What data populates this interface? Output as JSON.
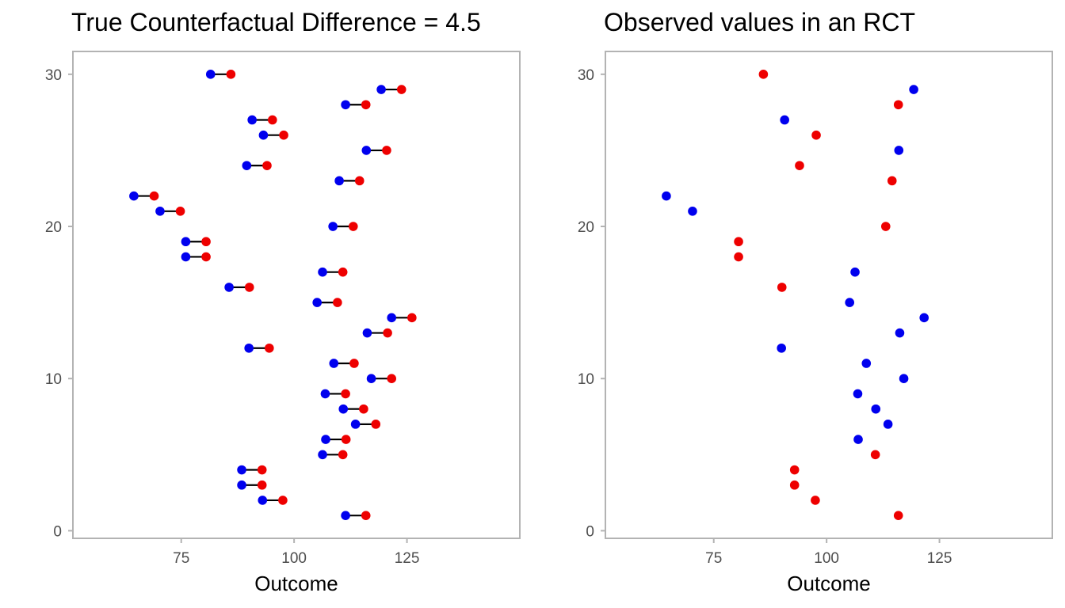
{
  "chart_data": [
    {
      "type": "scatter",
      "title": "True Counterfactual Difference = 4.5",
      "xlabel": "Outcome",
      "ylabel": "",
      "xlim": [
        51,
        150
      ],
      "ylim": [
        -0.5,
        31.5
      ],
      "x_ticks": [
        75,
        100,
        125
      ],
      "x_tick_labels": [
        "75",
        "100",
        "125"
      ],
      "y_ticks": [
        0,
        10,
        20,
        30
      ],
      "y_tick_labels": [
        "0",
        "10",
        "20",
        "30"
      ],
      "grid": false,
      "colors": {
        "control": "#0000ee",
        "treated": "#ee0000",
        "segment": "#000000"
      },
      "segments": true,
      "points": [
        {
          "y": 1,
          "blue": 111.4,
          "red": 115.9
        },
        {
          "y": 2,
          "blue": 93.0,
          "red": 97.5
        },
        {
          "y": 3,
          "blue": 88.4,
          "red": 92.9
        },
        {
          "y": 4,
          "blue": 88.4,
          "red": 92.9
        },
        {
          "y": 5,
          "blue": 106.3,
          "red": 110.8
        },
        {
          "y": 6,
          "blue": 107.0,
          "red": 111.5
        },
        {
          "y": 7,
          "blue": 113.6,
          "red": 118.1
        },
        {
          "y": 8,
          "blue": 110.9,
          "red": 115.4
        },
        {
          "y": 9,
          "blue": 106.9,
          "red": 111.4
        },
        {
          "y": 10,
          "blue": 117.1,
          "red": 121.6
        },
        {
          "y": 11,
          "blue": 108.8,
          "red": 113.3
        },
        {
          "y": 12,
          "blue": 90.0,
          "red": 94.5
        },
        {
          "y": 13,
          "blue": 116.2,
          "red": 120.7
        },
        {
          "y": 14,
          "blue": 121.6,
          "red": 126.1
        },
        {
          "y": 15,
          "blue": 105.1,
          "red": 109.6
        },
        {
          "y": 16,
          "blue": 85.6,
          "red": 90.1
        },
        {
          "y": 17,
          "blue": 106.3,
          "red": 110.8
        },
        {
          "y": 18,
          "blue": 76.0,
          "red": 80.5
        },
        {
          "y": 19,
          "blue": 76.0,
          "red": 80.5
        },
        {
          "y": 20,
          "blue": 108.6,
          "red": 113.1
        },
        {
          "y": 21,
          "blue": 70.3,
          "red": 74.8
        },
        {
          "y": 22,
          "blue": 64.5,
          "red": 69.0
        },
        {
          "y": 23,
          "blue": 110.0,
          "red": 114.5
        },
        {
          "y": 24,
          "blue": 89.5,
          "red": 94.0
        },
        {
          "y": 25,
          "blue": 116.0,
          "red": 120.5
        },
        {
          "y": 26,
          "blue": 93.2,
          "red": 97.7
        },
        {
          "y": 27,
          "blue": 90.7,
          "red": 95.2
        },
        {
          "y": 28,
          "blue": 111.4,
          "red": 115.9
        },
        {
          "y": 29,
          "blue": 119.3,
          "red": 123.8
        },
        {
          "y": 30,
          "blue": 81.5,
          "red": 86.0
        }
      ]
    },
    {
      "type": "scatter",
      "title": "Observed values in an RCT",
      "xlabel": "Outcome",
      "ylabel": "",
      "xlim": [
        51,
        150
      ],
      "ylim": [
        -0.5,
        31.5
      ],
      "x_ticks": [
        75,
        100,
        125
      ],
      "x_tick_labels": [
        "75",
        "100",
        "125"
      ],
      "y_ticks": [
        0,
        10,
        20,
        30
      ],
      "y_tick_labels": [
        "0",
        "10",
        "20",
        "30"
      ],
      "grid": false,
      "colors": {
        "control": "#0000ee",
        "treated": "#ee0000"
      },
      "segments": false,
      "observed": [
        {
          "y": 1,
          "x": 115.9,
          "group": "red"
        },
        {
          "y": 2,
          "x": 97.5,
          "group": "red"
        },
        {
          "y": 3,
          "x": 92.9,
          "group": "red"
        },
        {
          "y": 4,
          "x": 92.9,
          "group": "red"
        },
        {
          "y": 5,
          "x": 110.8,
          "group": "red"
        },
        {
          "y": 6,
          "x": 107.0,
          "group": "blue"
        },
        {
          "y": 7,
          "x": 113.6,
          "group": "blue"
        },
        {
          "y": 8,
          "x": 110.9,
          "group": "blue"
        },
        {
          "y": 9,
          "x": 106.9,
          "group": "blue"
        },
        {
          "y": 10,
          "x": 117.1,
          "group": "blue"
        },
        {
          "y": 11,
          "x": 108.8,
          "group": "blue"
        },
        {
          "y": 12,
          "x": 90.0,
          "group": "blue"
        },
        {
          "y": 13,
          "x": 116.2,
          "group": "blue"
        },
        {
          "y": 14,
          "x": 121.6,
          "group": "blue"
        },
        {
          "y": 15,
          "x": 105.1,
          "group": "blue"
        },
        {
          "y": 16,
          "x": 90.1,
          "group": "red"
        },
        {
          "y": 17,
          "x": 106.3,
          "group": "blue"
        },
        {
          "y": 18,
          "x": 80.5,
          "group": "red"
        },
        {
          "y": 19,
          "x": 80.5,
          "group": "red"
        },
        {
          "y": 20,
          "x": 113.1,
          "group": "red"
        },
        {
          "y": 21,
          "x": 70.3,
          "group": "blue"
        },
        {
          "y": 22,
          "x": 64.5,
          "group": "blue"
        },
        {
          "y": 23,
          "x": 114.5,
          "group": "red"
        },
        {
          "y": 24,
          "x": 94.0,
          "group": "red"
        },
        {
          "y": 25,
          "x": 116.0,
          "group": "blue"
        },
        {
          "y": 26,
          "x": 97.7,
          "group": "red"
        },
        {
          "y": 27,
          "x": 90.7,
          "group": "blue"
        },
        {
          "y": 28,
          "x": 115.9,
          "group": "red"
        },
        {
          "y": 29,
          "x": 119.3,
          "group": "blue"
        },
        {
          "y": 30,
          "x": 86.0,
          "group": "red"
        }
      ]
    }
  ]
}
